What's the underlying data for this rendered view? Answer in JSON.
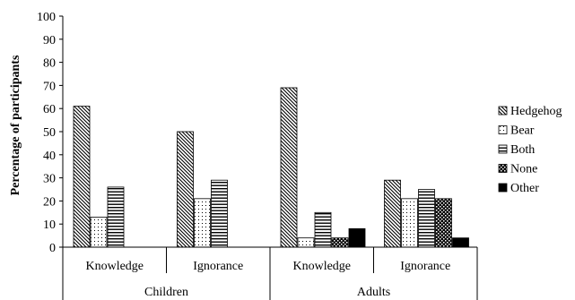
{
  "chart_data": {
    "type": "bar",
    "ylabel": "Percentage of participants",
    "ylim": [
      0,
      100
    ],
    "yticks": [
      0,
      10,
      20,
      30,
      40,
      50,
      60,
      70,
      80,
      90,
      100
    ],
    "grid": false,
    "legend_position": "right",
    "groups": [
      {
        "label": "Children",
        "categories": [
          "Knowledge",
          "Ignorance"
        ]
      },
      {
        "label": "Adults",
        "categories": [
          "Knowledge",
          "Ignorance"
        ]
      }
    ],
    "categories": [
      "Knowledge",
      "Ignorance",
      "Knowledge",
      "Ignorance"
    ],
    "series": [
      {
        "name": "Hedgehog",
        "pattern": "diagonal-hatch",
        "values": [
          61,
          50,
          69,
          29
        ]
      },
      {
        "name": "Bear",
        "pattern": "dots",
        "values": [
          13,
          21,
          4,
          21
        ]
      },
      {
        "name": "Both",
        "pattern": "horizontal-lines",
        "values": [
          26,
          29,
          15,
          25
        ]
      },
      {
        "name": "None",
        "pattern": "checker",
        "values": [
          0,
          0,
          4,
          21
        ]
      },
      {
        "name": "Other",
        "pattern": "solid-black",
        "values": [
          0,
          0,
          8,
          4
        ]
      }
    ]
  }
}
